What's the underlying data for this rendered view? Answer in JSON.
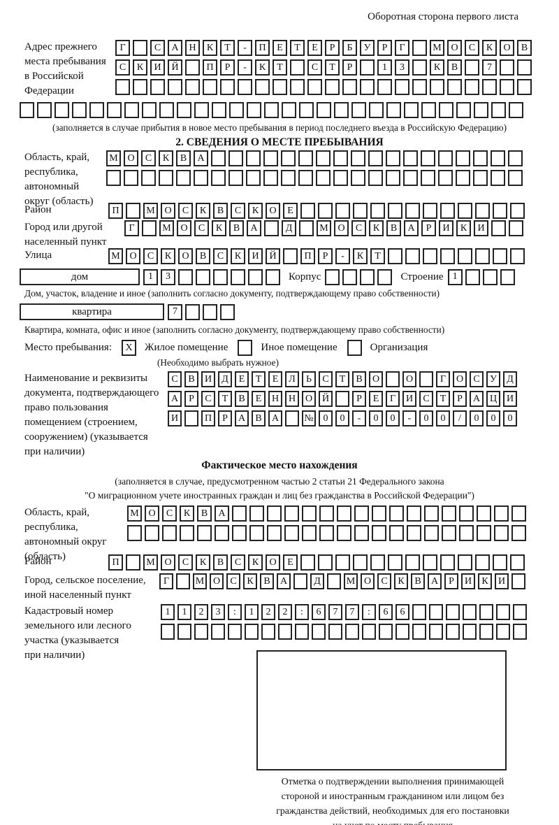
{
  "header_note": "Оборотная сторона первого листа",
  "prev_address": {
    "label_lines": [
      "Адрес прежнего",
      "места пребывания",
      "в Российской",
      "Федерации"
    ],
    "rows": [
      {
        "text": "Г САНКТ-ПЕТЕРБУРГ МОСКОВ",
        "len": 24
      },
      {
        "text": "СКИЙ ПР-КТ СТР 13 КВ 7",
        "len": 24
      },
      {
        "text": "",
        "len": 24
      }
    ],
    "full_row": {
      "text": "",
      "len": 29
    },
    "caption": "(заполняется в случае прибытия в новое место пребывания в период последнего въезда в Российскую Федерацию)"
  },
  "section2": {
    "title": "2. СВЕДЕНИЯ О МЕСТЕ ПРЕБЫВАНИЯ",
    "region": {
      "label_lines": [
        "Область, край,",
        "республика,",
        "автономный",
        "округ (область)"
      ],
      "rows": [
        {
          "text": "МОСКВА",
          "len": 24
        },
        {
          "text": "",
          "len": 24
        }
      ]
    },
    "district": {
      "label": "Район",
      "row": {
        "text": "П МОСКВСКОЕ",
        "len": 24
      }
    },
    "city": {
      "label_lines": [
        "Город или другой",
        "населенный пункт"
      ],
      "row": {
        "text": "Г МОСКВА Д МОСКВАРИКИ",
        "len": 23
      }
    },
    "street": {
      "label": "Улица",
      "row": {
        "text": "МОСКОВСКИЙ ПР-КТ",
        "len": 24
      }
    },
    "house": {
      "box_label": "дом",
      "cells": {
        "text": "13",
        "len": 8
      }
    },
    "korpus": {
      "label": "Корпус",
      "cells": {
        "text": "",
        "len": 4
      }
    },
    "stroenie": {
      "label": "Строение",
      "cells": {
        "text": "1",
        "len": 4
      }
    },
    "house_caption": "Дом, участок, владение и иное (заполнить согласно документу, подтверждающему право собственности)",
    "apartment": {
      "box_label": "квартира",
      "cells": {
        "text": "7",
        "len": 4
      }
    },
    "apartment_caption": "Квартира, комната, офис и иное (заполнить согласно документу, подтверждающему право собственности)",
    "stay_type": {
      "label": "Место пребывания:",
      "options": [
        {
          "label": "Жилое помещение",
          "mark": "X"
        },
        {
          "label": "Иное помещение",
          "mark": ""
        },
        {
          "label": "Организация",
          "mark": ""
        }
      ],
      "note": "(Необходимо выбрать нужное)"
    },
    "document": {
      "label_lines": [
        "Наименование и реквизиты",
        "документа, подтверждающего",
        "право пользования",
        "помещением (строением,",
        "сооружением) (указывается",
        "при наличии)"
      ],
      "rows": [
        {
          "text": "СВИДЕТЕЛЬСТВО О ГОСУД",
          "len": 21
        },
        {
          "text": "АРСТВЕННОЙ РЕГИСТРАЦИ",
          "len": 21
        },
        {
          "text": "И ПРАВА №00-00-00/000",
          "len": 21
        }
      ]
    }
  },
  "actual_location": {
    "title": "Фактическое место нахождения",
    "caption_lines": [
      "(заполняется в случае, предусмотренном частью 2 статьи 21 Федерального закона",
      "\"О миграционном учете иностранных граждан и лиц без гражданства в Российской Федерации\")"
    ],
    "region": {
      "label_lines": [
        "Область, край,",
        "республика,",
        "автономный округ",
        "(область)"
      ],
      "rows": [
        {
          "text": "МОСКВА",
          "len": 23
        },
        {
          "text": "",
          "len": 23
        }
      ]
    },
    "district": {
      "label": "Район",
      "row": {
        "text": "П МОСКВСКОЕ",
        "len": 24
      }
    },
    "city": {
      "label_lines": [
        "Город, сельское поселение,",
        "иной населенный пункт"
      ],
      "row": {
        "text": "Г МОСКВА Д МОСКВАРИКИ",
        "len": 22
      }
    },
    "cadastre": {
      "label_lines": [
        "Кадастровый номер",
        "земельного или лесного",
        "участка (указывается",
        "при наличии)"
      ],
      "rows": [
        {
          "text": "1123:122:677:66",
          "len": 22
        },
        {
          "text": "",
          "len": 22
        }
      ]
    },
    "mark_box_caption_lines": [
      "Отметка о подтверждении выполнения принимающей",
      "стороной и иностранным гражданином или лицом без",
      "гражданства действий, необходимых для его постановки",
      "на учет по месту пребывания"
    ]
  }
}
